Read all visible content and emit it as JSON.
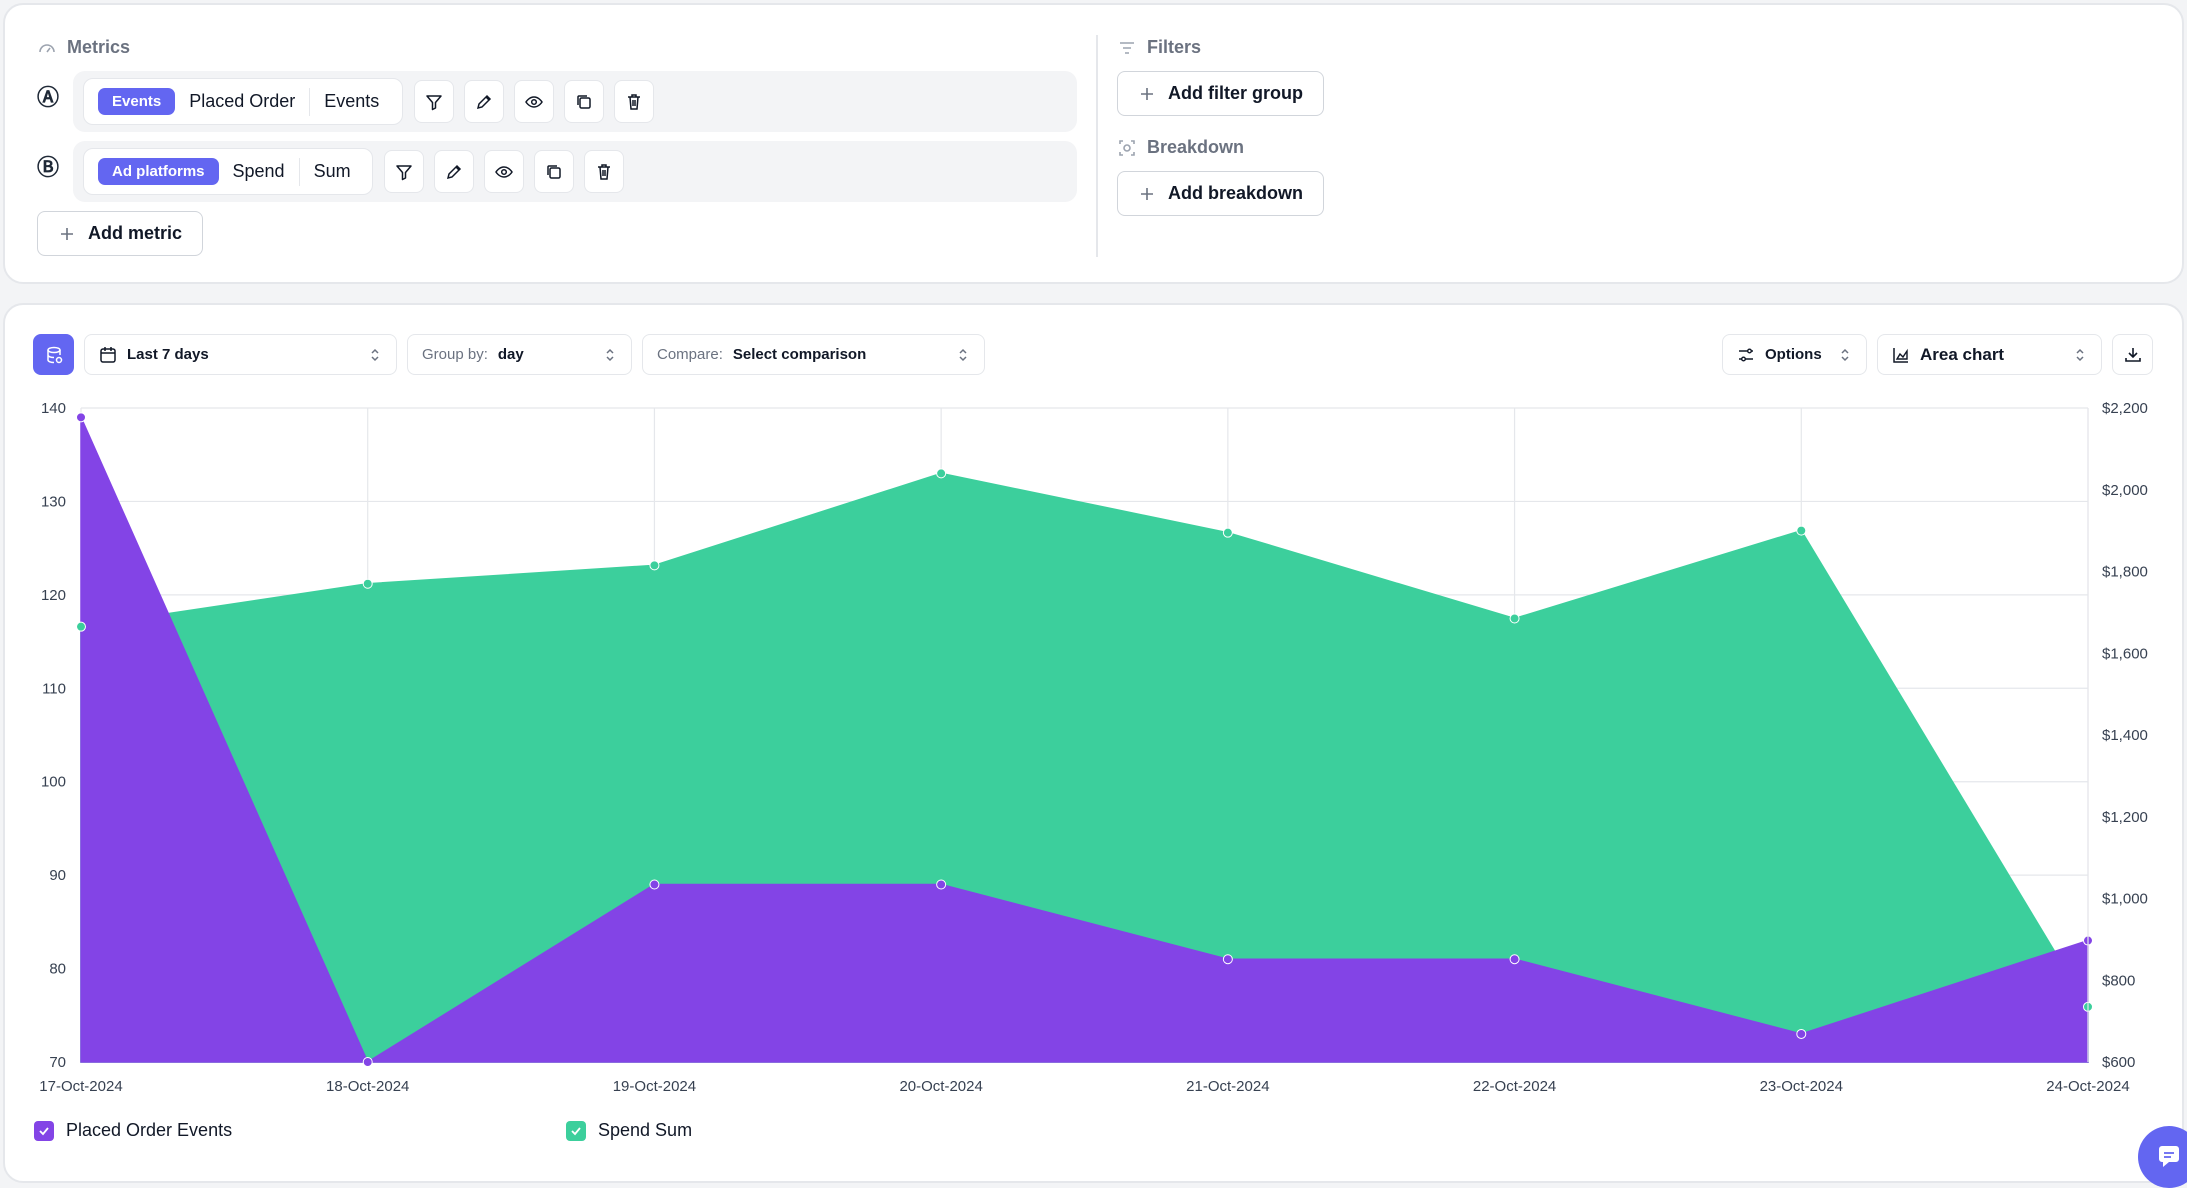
{
  "metrics": {
    "title": "Metrics",
    "rows": [
      {
        "letter": "Ⓐ",
        "tag": "Events",
        "name": "Placed Order",
        "aggregation": "Events"
      },
      {
        "letter": "Ⓑ",
        "tag": "Ad platforms",
        "name": "Spend",
        "aggregation": "Sum"
      }
    ],
    "add_label": "Add metric"
  },
  "filters": {
    "title": "Filters",
    "add_label": "Add filter group"
  },
  "breakdown": {
    "title": "Breakdown",
    "add_label": "Add breakdown"
  },
  "toolbar": {
    "date_range": "Last 7 days",
    "group_by_label": "Group by:",
    "group_by_value": "day",
    "compare_label": "Compare:",
    "compare_value": "Select comparison",
    "options_label": "Options",
    "chart_type_label": "Area chart"
  },
  "colors": {
    "accent": "#6366f1",
    "placed_order": "#8344e6",
    "spend": "#3ccf9c"
  },
  "chart_data": {
    "type": "area",
    "x": [
      "17-Oct-2024",
      "18-Oct-2024",
      "19-Oct-2024",
      "20-Oct-2024",
      "21-Oct-2024",
      "22-Oct-2024",
      "23-Oct-2024",
      "24-Oct-2024"
    ],
    "y_left": {
      "min": 70,
      "max": 140,
      "ticks": [
        70,
        80,
        90,
        100,
        110,
        120,
        130,
        140
      ]
    },
    "y_right": {
      "min": 600,
      "max": 2200,
      "ticks": [
        "$600",
        "$800",
        "$1,000",
        "$1,200",
        "$1,400",
        "$1,600",
        "$1,800",
        "$2,000",
        "$2,200"
      ]
    },
    "series": [
      {
        "name": "Placed Order Events",
        "axis": "left",
        "color": "#8344e6",
        "values": [
          139,
          70,
          89,
          89,
          81,
          81,
          73,
          83
        ]
      },
      {
        "name": "Spend Sum",
        "axis": "right",
        "color": "#3ccf9c",
        "values": [
          1665,
          1770,
          1815,
          2040,
          1895,
          1685,
          1900,
          735
        ]
      }
    ],
    "legend": "bottom-left",
    "grid": true
  }
}
